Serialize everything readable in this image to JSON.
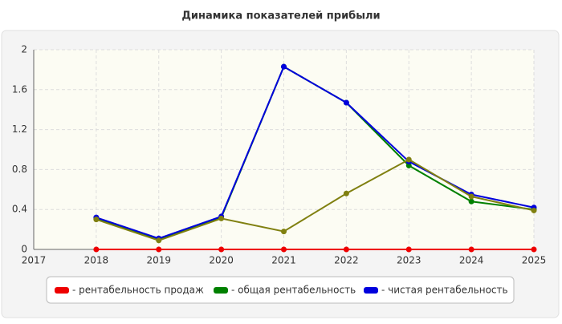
{
  "chart_data": {
    "type": "line",
    "title": "Динамика показателей прибыли",
    "x": [
      2018,
      2019,
      2020,
      2021,
      2022,
      2023,
      2024,
      2025
    ],
    "xlim": [
      2017,
      2025
    ],
    "xticks": [
      2017,
      2018,
      2019,
      2020,
      2021,
      2022,
      2023,
      2024,
      2025
    ],
    "ylim": [
      0,
      2
    ],
    "yticks": [
      0,
      0.4,
      0.8,
      1.2,
      1.6,
      2
    ],
    "grid": true,
    "series": [
      {
        "name": "- рентабельность продаж",
        "color": "#ee0000",
        "values": [
          0,
          0,
          0,
          0,
          0,
          0,
          0,
          0
        ]
      },
      {
        "name": "- общая рентабельность",
        "color": "#008000",
        "values": [
          0.31,
          0.1,
          0.32,
          1.83,
          1.47,
          0.84,
          0.48,
          0.4
        ]
      },
      {
        "name": "- чистая рентабельность",
        "color": "#0000dd",
        "values": [
          0.32,
          0.11,
          0.33,
          1.83,
          1.47,
          0.88,
          0.55,
          0.42
        ]
      },
      {
        "color": "#808010",
        "values": [
          0.3,
          0.09,
          0.31,
          0.18,
          0.56,
          0.9,
          0.53,
          0.39
        ]
      }
    ]
  }
}
